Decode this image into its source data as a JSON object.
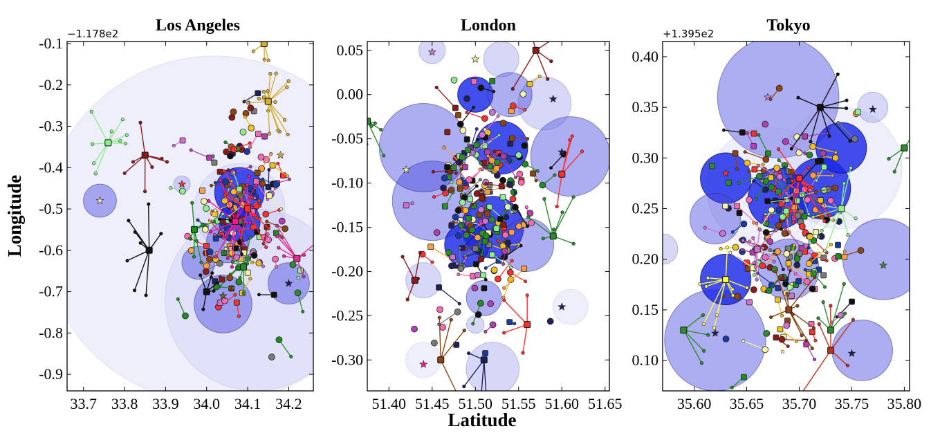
{
  "figure": {
    "xlabel": "Latitude",
    "ylabel": "Longitude"
  },
  "chart_data": [
    {
      "type": "scatter",
      "title": "Los Angeles",
      "y_offset_label": "−1.178e2",
      "xlim": [
        33.66,
        34.26
      ],
      "ylim": [
        -0.94,
        -0.095
      ],
      "xticks": [
        "33.7",
        "33.8",
        "33.9",
        "34.0",
        "34.1",
        "34.2"
      ],
      "xtick_values": [
        33.7,
        33.8,
        33.9,
        34.0,
        34.1,
        34.2
      ],
      "yticks": [
        "-0.1",
        "-0.2",
        "-0.3",
        "-0.4",
        "-0.5",
        "-0.6",
        "-0.7",
        "-0.8",
        "-0.9"
      ],
      "ytick_values": [
        -0.1,
        -0.2,
        -0.3,
        -0.4,
        -0.5,
        -0.6,
        -0.7,
        -0.8,
        -0.9
      ],
      "circles": [
        {
          "x": 34.02,
          "y": -0.55,
          "r": 0.42,
          "style": "faint"
        },
        {
          "x": 34.12,
          "y": -0.72,
          "r": 0.22,
          "style": "faint"
        },
        {
          "x": 34.08,
          "y": -0.5,
          "r": 0.11,
          "style": "faint"
        },
        {
          "x": 33.74,
          "y": -0.48,
          "r": 0.04,
          "style": "medium"
        },
        {
          "x": 33.94,
          "y": -0.44,
          "r": 0.02,
          "style": "light"
        },
        {
          "x": 34.08,
          "y": -0.46,
          "r": 0.06,
          "style": "dark"
        },
        {
          "x": 34.08,
          "y": -0.53,
          "r": 0.05,
          "style": "dark"
        },
        {
          "x": 34.05,
          "y": -0.58,
          "r": 0.05,
          "style": "medium"
        },
        {
          "x": 34.04,
          "y": -0.73,
          "r": 0.07,
          "style": "medium"
        },
        {
          "x": 34.2,
          "y": -0.68,
          "r": 0.05,
          "style": "medium"
        },
        {
          "x": 33.98,
          "y": -0.63,
          "r": 0.04,
          "style": "medium"
        }
      ],
      "hubs": [
        {
          "x": 33.76,
          "y": -0.34,
          "color": "#90ee90",
          "n": 9,
          "spread": 0.05
        },
        {
          "x": 33.85,
          "y": -0.37,
          "color": "#8b1a1a",
          "n": 7,
          "spread": 0.06
        },
        {
          "x": 34.15,
          "y": -0.24,
          "color": "#d4af37",
          "n": 16,
          "spread": 0.05
        },
        {
          "x": 34.14,
          "y": -0.1,
          "color": "#d4af37",
          "n": 6,
          "spread": 0.04
        },
        {
          "x": 34.07,
          "y": -0.53,
          "color": "#ff1493",
          "n": 14,
          "spread": 0.07
        },
        {
          "x": 34.1,
          "y": -0.5,
          "color": "#ff3030",
          "n": 12,
          "spread": 0.06
        },
        {
          "x": 33.86,
          "y": -0.6,
          "color": "#111111",
          "n": 8,
          "spread": 0.07
        },
        {
          "x": 34.09,
          "y": -0.64,
          "color": "#2e8b2e",
          "n": 9,
          "spread": 0.05
        },
        {
          "x": 34.22,
          "y": -0.62,
          "color": "#e0308f",
          "n": 8,
          "spread": 0.05
        },
        {
          "x": 34.0,
          "y": -0.7,
          "color": "#111111",
          "n": 5,
          "spread": 0.04
        },
        {
          "x": 33.97,
          "y": -0.55,
          "color": "#1e8f1e",
          "n": 8,
          "spread": 0.05
        }
      ],
      "stars": [
        {
          "x": 33.74,
          "y": -0.48,
          "color": "#f5deb3"
        },
        {
          "x": 33.94,
          "y": -0.44,
          "color": "#ff3030"
        },
        {
          "x": 34.04,
          "y": -0.71,
          "color": "#556b2f"
        },
        {
          "x": 34.2,
          "y": -0.68,
          "color": "#20205a"
        },
        {
          "x": 34.18,
          "y": -0.37,
          "color": "#d4af37"
        }
      ],
      "seed": 11,
      "cluster_x": 34.08,
      "cluster_y": -0.52,
      "cluster_sx": 0.06,
      "cluster_sy": 0.12,
      "n_points": 140
    },
    {
      "type": "scatter",
      "title": "London",
      "y_offset_label": "",
      "xlim": [
        51.375,
        51.655
      ],
      "ylim": [
        -0.335,
        0.06
      ],
      "xticks": [
        "51.40",
        "51.45",
        "51.50",
        "51.55",
        "51.60",
        "51.65"
      ],
      "xtick_values": [
        51.4,
        51.45,
        51.5,
        51.55,
        51.6,
        51.65
      ],
      "yticks": [
        "0.05",
        "0.00",
        "-0.05",
        "-0.10",
        "-0.15",
        "-0.20",
        "-0.25",
        "-0.30"
      ],
      "ytick_values": [
        0.05,
        0.0,
        -0.05,
        -0.1,
        -0.15,
        -0.2,
        -0.25,
        -0.3
      ],
      "circles": [
        {
          "x": 51.45,
          "y": -0.12,
          "r": 0.045,
          "style": "medium"
        },
        {
          "x": 51.44,
          "y": -0.06,
          "r": 0.05,
          "style": "medium"
        },
        {
          "x": 51.61,
          "y": -0.07,
          "r": 0.045,
          "style": "medium"
        },
        {
          "x": 51.58,
          "y": -0.01,
          "r": 0.03,
          "style": "light"
        },
        {
          "x": 51.5,
          "y": -0.0,
          "r": 0.02,
          "style": "dark"
        },
        {
          "x": 51.54,
          "y": -0.0,
          "r": 0.025,
          "style": "medium"
        },
        {
          "x": 51.53,
          "y": -0.06,
          "r": 0.03,
          "style": "dark"
        },
        {
          "x": 51.52,
          "y": -0.15,
          "r": 0.035,
          "style": "dark"
        },
        {
          "x": 51.49,
          "y": -0.17,
          "r": 0.025,
          "style": "dark"
        },
        {
          "x": 51.56,
          "y": -0.17,
          "r": 0.03,
          "style": "medium"
        },
        {
          "x": 51.51,
          "y": -0.23,
          "r": 0.02,
          "style": "medium"
        },
        {
          "x": 51.44,
          "y": -0.21,
          "r": 0.02,
          "style": "light"
        },
        {
          "x": 51.61,
          "y": -0.24,
          "r": 0.02,
          "style": "faint"
        },
        {
          "x": 51.52,
          "y": -0.31,
          "r": 0.03,
          "style": "light"
        },
        {
          "x": 51.44,
          "y": -0.3,
          "r": 0.02,
          "style": "faint"
        },
        {
          "x": 51.45,
          "y": 0.05,
          "r": 0.015,
          "style": "light"
        },
        {
          "x": 51.53,
          "y": 0.04,
          "r": 0.02,
          "style": "light"
        },
        {
          "x": 51.5,
          "y": -0.26,
          "r": 0.01,
          "style": "light"
        }
      ],
      "hubs": [
        {
          "x": 51.375,
          "y": -0.03,
          "color": "#2e8b2e",
          "n": 8,
          "spread": 0.03
        },
        {
          "x": 51.57,
          "y": 0.05,
          "color": "#8b1a1a",
          "n": 5,
          "spread": 0.03
        },
        {
          "x": 51.59,
          "y": -0.16,
          "color": "#2e8b2e",
          "n": 7,
          "spread": 0.03
        },
        {
          "x": 51.43,
          "y": -0.21,
          "color": "#8b1a1a",
          "n": 4,
          "spread": 0.02
        },
        {
          "x": 51.56,
          "y": -0.26,
          "color": "#ff3030",
          "n": 4,
          "spread": 0.03
        },
        {
          "x": 51.51,
          "y": -0.3,
          "color": "#20205a",
          "n": 4,
          "spread": 0.03
        },
        {
          "x": 51.46,
          "y": -0.3,
          "color": "#8b4513",
          "n": 4,
          "spread": 0.03
        },
        {
          "x": 51.6,
          "y": -0.09,
          "color": "#ff3030",
          "n": 4,
          "spread": 0.03
        }
      ],
      "stars": [
        {
          "x": 51.45,
          "y": 0.048,
          "color": "#d070d0"
        },
        {
          "x": 51.5,
          "y": 0.04,
          "color": "#f0e68c"
        },
        {
          "x": 51.6,
          "y": -0.065,
          "color": "#20205a"
        },
        {
          "x": 51.59,
          "y": -0.005,
          "color": "#20205a"
        },
        {
          "x": 51.44,
          "y": -0.305,
          "color": "#ff1493"
        },
        {
          "x": 51.6,
          "y": -0.24,
          "color": "#20205a"
        },
        {
          "x": 51.42,
          "y": -0.085,
          "color": "#f5f5aa"
        }
      ],
      "seed": 23,
      "cluster_x": 51.51,
      "cluster_y": -0.13,
      "cluster_sx": 0.03,
      "cluster_sy": 0.06,
      "n_points": 200
    },
    {
      "type": "scatter",
      "title": "Tokyo",
      "y_offset_label": "+1.395e2",
      "xlim": [
        35.57,
        35.805
      ],
      "ylim": [
        0.07,
        0.415
      ],
      "xticks": [
        "35.60",
        "35.65",
        "35.70",
        "35.75",
        "35.80"
      ],
      "xtick_values": [
        35.6,
        35.65,
        35.7,
        35.75,
        35.8
      ],
      "yticks": [
        "0.40",
        "0.35",
        "0.30",
        "0.25",
        "0.20",
        "0.15",
        "0.10"
      ],
      "ytick_values": [
        0.4,
        0.35,
        0.3,
        0.25,
        0.2,
        0.15,
        0.1
      ],
      "circles": [
        {
          "x": 35.68,
          "y": 0.36,
          "r": 0.06,
          "style": "medium"
        },
        {
          "x": 35.67,
          "y": 0.27,
          "r": 0.06,
          "style": "faint"
        },
        {
          "x": 35.74,
          "y": 0.29,
          "r": 0.06,
          "style": "faint"
        },
        {
          "x": 35.62,
          "y": 0.12,
          "r": 0.05,
          "style": "medium"
        },
        {
          "x": 35.76,
          "y": 0.11,
          "r": 0.03,
          "style": "medium"
        },
        {
          "x": 35.63,
          "y": 0.28,
          "r": 0.025,
          "style": "dark"
        },
        {
          "x": 35.68,
          "y": 0.26,
          "r": 0.03,
          "style": "dark"
        },
        {
          "x": 35.72,
          "y": 0.27,
          "r": 0.03,
          "style": "dark"
        },
        {
          "x": 35.74,
          "y": 0.31,
          "r": 0.025,
          "style": "dark"
        },
        {
          "x": 35.63,
          "y": 0.18,
          "r": 0.025,
          "style": "dark"
        },
        {
          "x": 35.62,
          "y": 0.24,
          "r": 0.025,
          "style": "medium"
        },
        {
          "x": 35.69,
          "y": 0.19,
          "r": 0.03,
          "style": "medium"
        },
        {
          "x": 35.78,
          "y": 0.2,
          "r": 0.04,
          "style": "medium"
        },
        {
          "x": 35.77,
          "y": 0.35,
          "r": 0.015,
          "style": "light"
        },
        {
          "x": 35.57,
          "y": 0.21,
          "r": 0.015,
          "style": "light"
        }
      ],
      "hubs": [
        {
          "x": 35.72,
          "y": 0.35,
          "color": "#111111",
          "n": 8,
          "spread": 0.03
        },
        {
          "x": 35.63,
          "y": 0.18,
          "color": "#ffff40",
          "n": 10,
          "spread": 0.03
        },
        {
          "x": 35.74,
          "y": 0.25,
          "color": "#90ee90",
          "n": 8,
          "spread": 0.03
        },
        {
          "x": 35.59,
          "y": 0.13,
          "color": "#2e8b2e",
          "n": 4,
          "spread": 0.03
        },
        {
          "x": 35.73,
          "y": 0.11,
          "color": "#c03020",
          "n": 5,
          "spread": 0.03
        },
        {
          "x": 35.69,
          "y": 0.15,
          "color": "#8b4513",
          "n": 9,
          "spread": 0.03
        },
        {
          "x": 35.7,
          "y": 0.28,
          "color": "#ff3030",
          "n": 10,
          "spread": 0.03
        },
        {
          "x": 35.66,
          "y": 0.21,
          "color": "#d070d0",
          "n": 10,
          "spread": 0.02
        },
        {
          "x": 35.73,
          "y": 0.13,
          "color": "#2e8b2e",
          "n": 4,
          "spread": 0.03
        },
        {
          "x": 35.8,
          "y": 0.31,
          "color": "#2e8b2e",
          "n": 3,
          "spread": 0.02
        }
      ],
      "stars": [
        {
          "x": 35.67,
          "y": 0.36,
          "color": "#d070d0"
        },
        {
          "x": 35.63,
          "y": 0.285,
          "color": "#ff3030"
        },
        {
          "x": 35.77,
          "y": 0.348,
          "color": "#20205a"
        },
        {
          "x": 35.62,
          "y": 0.127,
          "color": "#20205a"
        },
        {
          "x": 35.75,
          "y": 0.107,
          "color": "#20205a"
        },
        {
          "x": 35.78,
          "y": 0.194,
          "color": "#2e8b2e"
        }
      ],
      "seed": 37,
      "cluster_x": 35.69,
      "cluster_y": 0.23,
      "cluster_sx": 0.03,
      "cluster_sy": 0.05,
      "n_points": 180
    }
  ],
  "palette": [
    "#ff3030",
    "#2e8b2e",
    "#8b1a1a",
    "#d070d0",
    "#1a3aa0",
    "#f0c020",
    "#111111",
    "#90ee90",
    "#8b4513",
    "#ff69b4",
    "#7a7a7a",
    "#20205a",
    "#b040b0",
    "#228b22",
    "#ffa040",
    "#f5f5aa"
  ]
}
